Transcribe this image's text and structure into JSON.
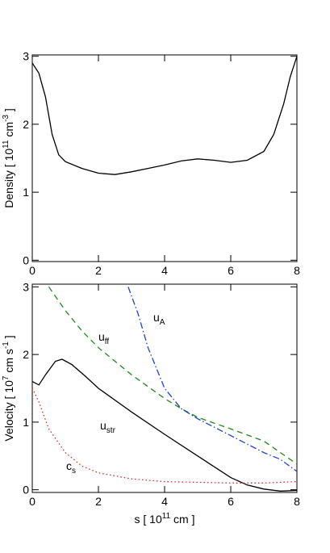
{
  "chart_data": [
    {
      "type": "line",
      "ylabel": [
        "Density [ 10",
        "11",
        " cm",
        "-3",
        " ]"
      ],
      "xlim": [
        0,
        8
      ],
      "xticks": [
        0,
        2,
        4,
        6,
        8
      ],
      "ylim": [
        -0.02,
        3.02
      ],
      "yticks": [
        0,
        1,
        2,
        3
      ],
      "series": [
        {
          "color": "#000000",
          "linestyle": "solid",
          "x": [
            0,
            0.2,
            0.4,
            0.6,
            0.8,
            1.0,
            1.5,
            2.0,
            2.5,
            3.0,
            3.5,
            4.0,
            4.5,
            5.0,
            5.5,
            6.0,
            6.5,
            7.0,
            7.3,
            7.6,
            7.8,
            8.0
          ],
          "values": [
            2.9,
            2.75,
            2.4,
            1.85,
            1.55,
            1.45,
            1.35,
            1.28,
            1.26,
            1.3,
            1.35,
            1.4,
            1.46,
            1.49,
            1.47,
            1.44,
            1.47,
            1.6,
            1.85,
            2.3,
            2.7,
            3.0
          ]
        }
      ]
    },
    {
      "type": "line",
      "ylabel": [
        "Velocity [ 10",
        "7",
        " cm s",
        "-1",
        " ]"
      ],
      "xlabel": [
        "s [ 10",
        "11",
        " cm ]"
      ],
      "xlim": [
        0,
        8
      ],
      "xticks": [
        0,
        2,
        4,
        6,
        8
      ],
      "ylim": [
        -0.04,
        3.04
      ],
      "yticks": [
        0,
        1,
        2,
        3
      ],
      "series": [
        {
          "name": "u",
          "subscript": "str",
          "color": "#000000",
          "linestyle": "solid",
          "x": [
            0,
            0.2,
            0.4,
            0.7,
            0.9,
            1.2,
            1.6,
            2,
            3,
            4,
            5,
            6,
            6.5,
            7,
            7.5,
            8
          ],
          "values": [
            1.6,
            1.55,
            1.7,
            1.9,
            1.93,
            1.85,
            1.68,
            1.5,
            1.15,
            0.82,
            0.5,
            0.18,
            0.07,
            0.01,
            -0.02,
            -0.01
          ]
        },
        {
          "name": "u",
          "subscript": "ff",
          "color": "#1a8a1a",
          "linestyle": "dashed",
          "x": [
            0.5,
            1,
            1.5,
            2,
            3,
            4,
            4.5,
            5,
            6,
            7,
            7.5,
            8
          ],
          "values": [
            3.0,
            2.65,
            2.35,
            2.1,
            1.7,
            1.35,
            1.2,
            1.07,
            0.9,
            0.72,
            0.55,
            0.38
          ]
        },
        {
          "name": "u",
          "subscript": "A",
          "color": "#1f3fd0",
          "linestyle": "dashdot",
          "x": [
            2.9,
            3.2,
            3.5,
            4,
            4.5,
            5,
            6,
            7,
            7.5,
            8
          ],
          "values": [
            3.0,
            2.6,
            2.1,
            1.5,
            1.2,
            1.05,
            0.8,
            0.55,
            0.45,
            0.27
          ]
        },
        {
          "name": "c",
          "subscript": "s",
          "color": "#e02020",
          "linestyle": "dotted",
          "x": [
            0,
            0.2,
            0.5,
            1,
            1.5,
            2,
            3,
            4,
            5,
            6,
            7,
            7.5,
            8
          ],
          "values": [
            1.5,
            1.3,
            0.9,
            0.55,
            0.35,
            0.25,
            0.16,
            0.12,
            0.11,
            0.1,
            0.1,
            0.11,
            0.12
          ]
        }
      ]
    }
  ]
}
